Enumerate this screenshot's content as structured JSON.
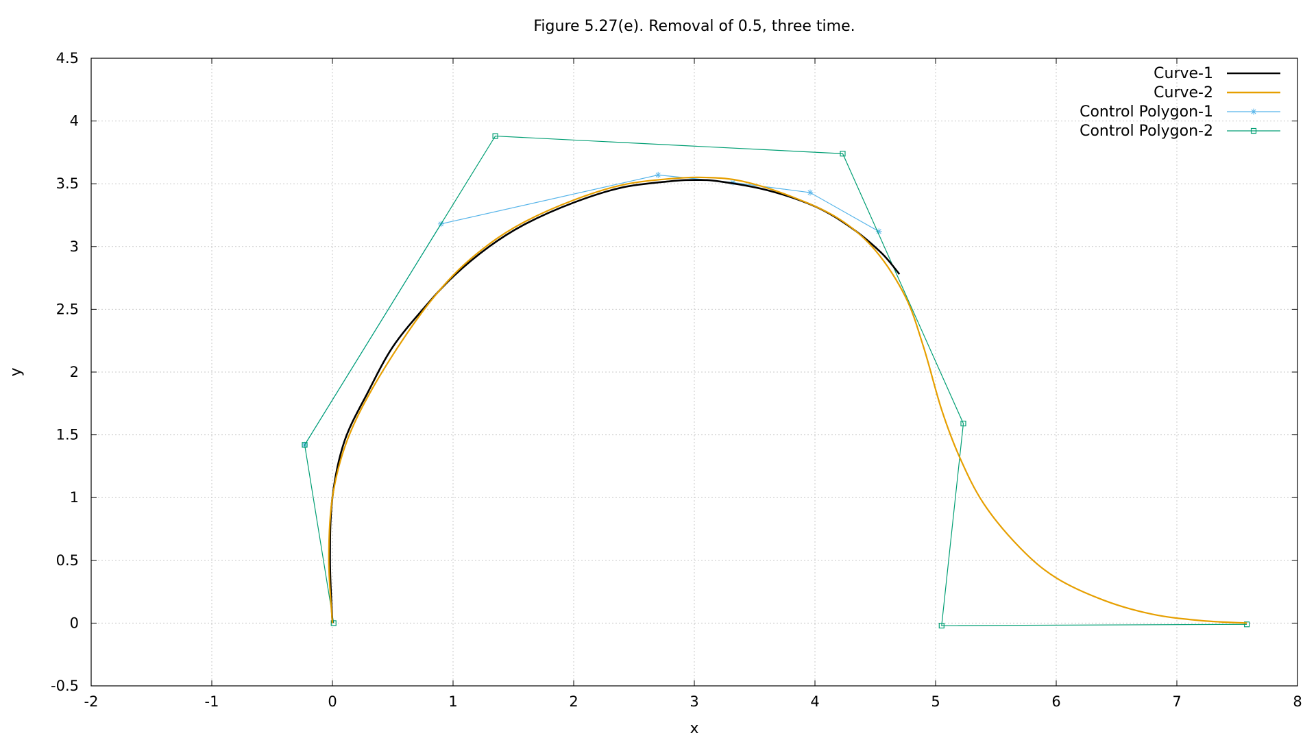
{
  "chart_data": {
    "type": "line",
    "title": "Figure 5.27(e). Removal of 0.5, three time.",
    "xlabel": "x",
    "ylabel": "y",
    "xlim": [
      -2,
      8
    ],
    "ylim": [
      -0.5,
      4.5
    ],
    "xticks": [
      -2,
      -1,
      0,
      1,
      2,
      3,
      4,
      5,
      6,
      7,
      8
    ],
    "yticks": [
      -0.5,
      0,
      0.5,
      1,
      1.5,
      2,
      2.5,
      3,
      3.5,
      4,
      4.5
    ],
    "xtick_labels": [
      "-2",
      "-1",
      "0",
      "1",
      "2",
      "3",
      "4",
      "5",
      "6",
      "7",
      "8"
    ],
    "ytick_labels": [
      "-0.5",
      "0",
      "0.5",
      "1",
      "1.5",
      "2",
      "2.5",
      "3",
      "3.5",
      "4",
      "4.5"
    ],
    "grid": true,
    "legend_position": "top-right",
    "series": [
      {
        "name": "Curve-1",
        "color": "#000000",
        "marker": "none",
        "x": [
          0.0,
          -0.02,
          0.0,
          0.1,
          0.3,
          0.5,
          0.75,
          1.0,
          1.3,
          1.6,
          2.0,
          2.4,
          2.8,
          3.0,
          3.2,
          3.6,
          4.0,
          4.3,
          4.55,
          4.7
        ],
        "y": [
          0.0,
          0.5,
          1.0,
          1.45,
          1.85,
          2.2,
          2.5,
          2.76,
          3.0,
          3.18,
          3.35,
          3.47,
          3.52,
          3.53,
          3.52,
          3.45,
          3.32,
          3.15,
          2.95,
          2.78
        ]
      },
      {
        "name": "Curve-2",
        "color": "#e69f00",
        "marker": "none",
        "x": [
          0.0,
          -0.03,
          0.0,
          0.12,
          0.35,
          0.7,
          1.0,
          1.3,
          1.6,
          2.0,
          2.4,
          2.8,
          3.1,
          3.4,
          3.8,
          4.2,
          4.5,
          4.75,
          4.9,
          5.05,
          5.2,
          5.4,
          5.7,
          6.0,
          6.4,
          6.8,
          7.2,
          7.58
        ],
        "y": [
          0.0,
          0.5,
          1.0,
          1.45,
          1.9,
          2.42,
          2.77,
          3.02,
          3.2,
          3.37,
          3.49,
          3.54,
          3.55,
          3.52,
          3.4,
          3.22,
          2.97,
          2.6,
          2.2,
          1.7,
          1.32,
          0.95,
          0.6,
          0.36,
          0.18,
          0.07,
          0.02,
          0.0
        ]
      },
      {
        "name": "Control Polygon-1",
        "color": "#56b4e9",
        "marker": "star",
        "x": [
          -0.23,
          0.9,
          2.7,
          3.32,
          3.96,
          4.53
        ],
        "y": [
          1.42,
          3.18,
          3.57,
          3.51,
          3.43,
          3.12
        ]
      },
      {
        "name": "Control Polygon-2",
        "color": "#009e73",
        "marker": "square",
        "x": [
          0.01,
          -0.23,
          1.35,
          4.23,
          5.23,
          5.05,
          7.58
        ],
        "y": [
          0.0,
          1.42,
          3.88,
          3.74,
          1.59,
          -0.02,
          -0.01
        ]
      }
    ]
  }
}
